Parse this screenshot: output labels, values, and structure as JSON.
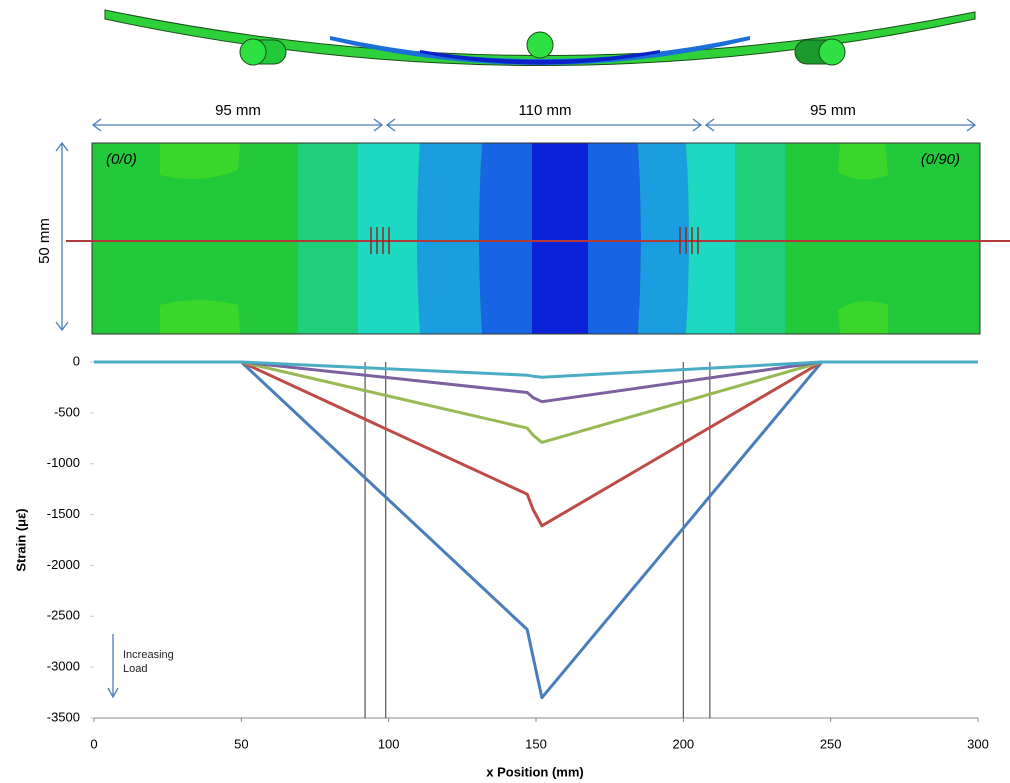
{
  "diagram": {
    "dimensions": [
      "95 mm",
      "110 mm",
      "95 mm"
    ],
    "width_label": "50 mm",
    "corner_labels": [
      "(0/0)",
      "(0/90)"
    ]
  },
  "chart_data": {
    "type": "line",
    "x": [
      0,
      50,
      147,
      149,
      152,
      247,
      300
    ],
    "series": [
      {
        "color": "#4a7ebb",
        "values": [
          0,
          0,
          -2630,
          -2900,
          -3300,
          0,
          0
        ]
      },
      {
        "color": "#be4b48",
        "values": [
          0,
          0,
          -1300,
          -1450,
          -1610,
          0,
          0
        ]
      },
      {
        "color": "#98b954",
        "values": [
          0,
          0,
          -650,
          -720,
          -790,
          0,
          0
        ]
      },
      {
        "color": "#7d60a0",
        "values": [
          0,
          0,
          -300,
          -350,
          -390,
          0,
          0
        ]
      },
      {
        "color": "#4bacc6",
        "values": [
          0,
          0,
          -130,
          -140,
          -150,
          0,
          0
        ]
      }
    ],
    "xlim": [
      0,
      300
    ],
    "xticks": [
      0,
      50,
      100,
      150,
      200,
      250,
      300
    ],
    "ylim": [
      -3500,
      0
    ],
    "yticks": [
      0,
      -500,
      -1000,
      -1500,
      -2000,
      -2500,
      -3000,
      -3500
    ],
    "reference_x": [
      92,
      99,
      200,
      209
    ],
    "x_label": "x Position (mm)",
    "y_label": "Strain (με)",
    "annotation": "Increasing Load"
  }
}
